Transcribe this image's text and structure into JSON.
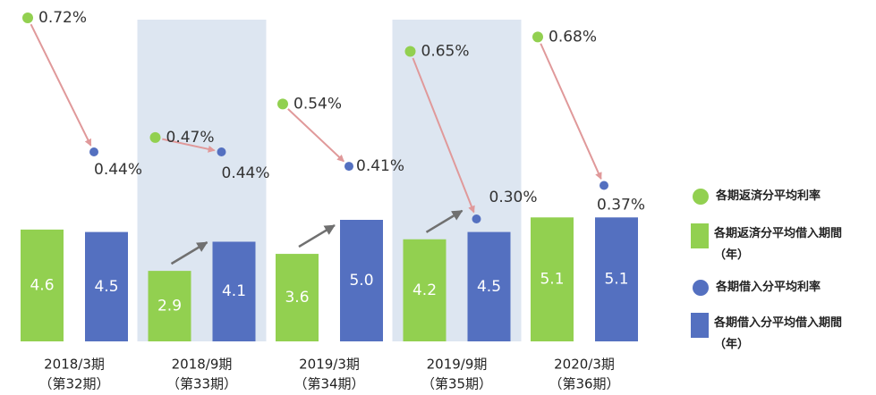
{
  "chart_data": {
    "type": "bar",
    "categories": [
      "2018/3期",
      "2018/9期",
      "2019/3期",
      "2019/9期",
      "2020/3期"
    ],
    "category_sublabels": [
      "（第32期）",
      "（第33期）",
      "（第34期）",
      "（第35期）",
      "（第36期）"
    ],
    "series": [
      {
        "name": "各期返済分平均利率",
        "type": "scatter",
        "color": "#92d050",
        "values": [
          0.72,
          0.47,
          0.54,
          0.65,
          0.68
        ],
        "value_labels": [
          "0.72%",
          "0.47%",
          "0.54%",
          "0.65%",
          "0.68%"
        ]
      },
      {
        "name": "各期返済分平均借入期間（年）",
        "type": "bar",
        "color": "#92d050",
        "values": [
          4.6,
          2.9,
          3.6,
          4.2,
          5.1
        ],
        "value_labels": [
          "4.6",
          "2.9",
          "3.6",
          "4.2",
          "5.1"
        ]
      },
      {
        "name": "各期借入分平均利率",
        "type": "scatter",
        "color": "#5470c0",
        "values": [
          0.44,
          0.44,
          0.41,
          0.3,
          0.37
        ],
        "value_labels": [
          "0.44%",
          "0.44%",
          "0.41%",
          "0.30%",
          "0.37%"
        ]
      },
      {
        "name": "各期借入分平均借入期間（年）",
        "type": "bar",
        "color": "#5470c0",
        "values": [
          4.5,
          4.1,
          5.0,
          4.5,
          5.1
        ],
        "value_labels": [
          "4.5",
          "4.1",
          "5.0",
          "4.5",
          "5.1"
        ]
      }
    ]
  }
}
